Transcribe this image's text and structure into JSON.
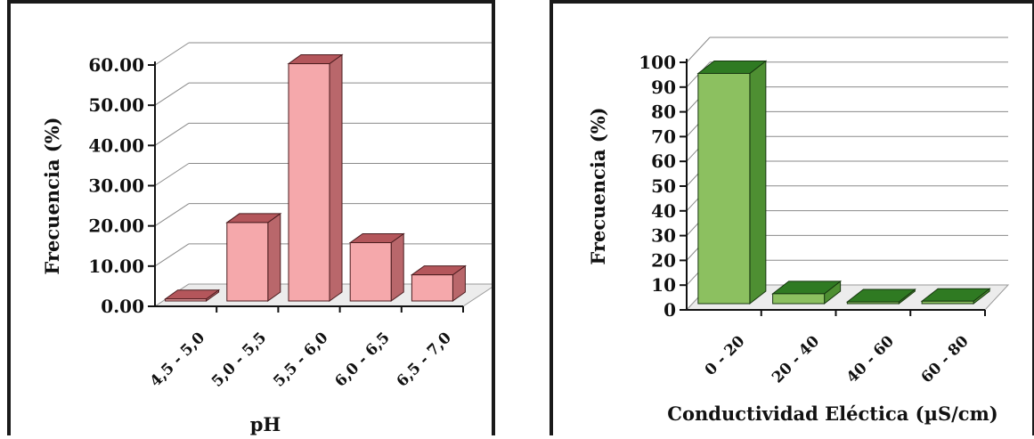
{
  "chart_data": [
    {
      "type": "bar",
      "categories": [
        "4,5 - 5,0",
        "5,0 - 5,5",
        "5,5 - 6,0",
        "6,0 - 6,5",
        "6,5 - 7,0"
      ],
      "values": [
        0.5,
        19.5,
        59.0,
        14.5,
        6.5
      ],
      "xlabel": "pH",
      "ylabel": "Frecuencia (%)",
      "ylim": [
        0,
        60
      ],
      "yticks": [
        "0.00",
        "10.00",
        "20.00",
        "30.00",
        "40.00",
        "50.00",
        "60.00"
      ],
      "grid": true,
      "colors": {
        "front": "#f5a8ab",
        "top": "#b4565b",
        "side": "#b9676b",
        "edge": "#4a1c1f"
      }
    },
    {
      "type": "bar",
      "categories": [
        "0 - 20",
        "20 - 40",
        "40 - 60",
        "60 - 80"
      ],
      "values": [
        93,
        4,
        0.5,
        1
      ],
      "xlabel": "Conductividad Eléctica (µS/cm)",
      "ylabel": "Frecuencia (%)",
      "ylim": [
        0,
        100
      ],
      "yticks": [
        "0",
        "10",
        "20",
        "30",
        "40",
        "50",
        "60",
        "70",
        "80",
        "90",
        "100"
      ],
      "grid": true,
      "colors": {
        "front": "#8cc060",
        "top": "#2f7a22",
        "side": "#4e8f32",
        "edge": "#16360f"
      }
    }
  ]
}
